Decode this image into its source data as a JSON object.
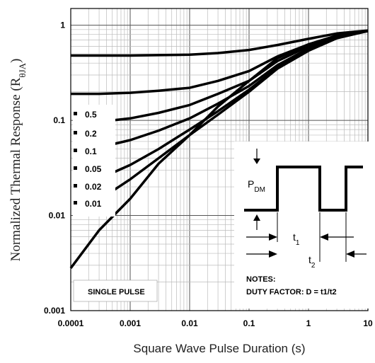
{
  "chart_data": {
    "type": "line",
    "title": "",
    "xlabel": "Square Wave Pulse Duration (s)",
    "ylabel": "Normalized Thermal Response (R",
    "ylabel_sub": "θJA",
    "ylabel_close": ")",
    "x_scale": "log",
    "y_scale": "log",
    "xlim": [
      0.0001,
      10
    ],
    "ylim": [
      0.001,
      1.5
    ],
    "grid": true,
    "x_ticks": [
      {
        "value": 0.0001,
        "label": "0.0001"
      },
      {
        "value": 0.001,
        "label": "0.001"
      },
      {
        "value": 0.01,
        "label": "0.01"
      },
      {
        "value": 0.1,
        "label": "0.1"
      },
      {
        "value": 1,
        "label": "1"
      },
      {
        "value": 10,
        "label": "10"
      }
    ],
    "y_ticks": [
      {
        "value": 0.001,
        "label": "0.001"
      },
      {
        "value": 0.01,
        "label": "0.01"
      },
      {
        "value": 0.1,
        "label": "0.1"
      },
      {
        "value": 1,
        "label": "1"
      }
    ],
    "x": [
      0.0001,
      0.0003,
      0.001,
      0.003,
      0.01,
      0.03,
      0.1,
      0.3,
      1,
      3,
      10
    ],
    "series": [
      {
        "name": "0.5",
        "values": [
          0.48,
          0.48,
          0.48,
          0.485,
          0.49,
          0.51,
          0.55,
          0.62,
          0.72,
          0.82,
          0.88
        ]
      },
      {
        "name": "0.2",
        "values": [
          0.19,
          0.19,
          0.195,
          0.205,
          0.22,
          0.26,
          0.33,
          0.47,
          0.63,
          0.77,
          0.87
        ]
      },
      {
        "name": "0.1",
        "values": null
      },
      {
        "name": "0.05",
        "values": null
      },
      {
        "name": "0.02",
        "values": null
      },
      {
        "name": "0.01",
        "values": null
      },
      {
        "name": "SINGLE PULSE",
        "values": [
          0.0028,
          0.007,
          0.015,
          0.035,
          0.07,
          0.14,
          0.26,
          0.45,
          0.63,
          0.78,
          0.87
        ]
      }
    ],
    "short_series": [
      {
        "name": "0.1",
        "x": [
          0.0005,
          0.001,
          0.003,
          0.01,
          0.03,
          0.1,
          0.3,
          1,
          3,
          10
        ],
        "values": [
          0.1,
          0.105,
          0.12,
          0.145,
          0.19,
          0.26,
          0.42,
          0.6,
          0.76,
          0.87
        ]
      },
      {
        "name": "0.05",
        "x": [
          0.0005,
          0.001,
          0.003,
          0.01,
          0.03,
          0.1,
          0.3,
          1,
          3,
          10
        ],
        "values": [
          0.056,
          0.062,
          0.078,
          0.105,
          0.15,
          0.23,
          0.38,
          0.57,
          0.75,
          0.87
        ]
      },
      {
        "name": "0.02",
        "x": [
          0.0005,
          0.001,
          0.003,
          0.01,
          0.03,
          0.1,
          0.3,
          1,
          3,
          10
        ],
        "values": [
          0.028,
          0.034,
          0.05,
          0.08,
          0.125,
          0.21,
          0.36,
          0.55,
          0.74,
          0.87
        ]
      },
      {
        "name": "0.01",
        "x": [
          0.0005,
          0.001,
          0.003,
          0.01,
          0.03,
          0.1,
          0.3,
          1,
          3,
          10
        ],
        "values": [
          0.018,
          0.024,
          0.04,
          0.07,
          0.115,
          0.2,
          0.35,
          0.54,
          0.73,
          0.87
        ]
      }
    ],
    "duty_labels": [
      "0.5",
      "0.2",
      "0.1",
      "0.05",
      "0.02",
      "0.01"
    ],
    "single_pulse_label": "SINGLE PULSE",
    "inset": {
      "pdm_label": "P",
      "pdm_sub": "DM",
      "t1_label": "t",
      "t1_sub": "1",
      "t2_label": "t",
      "t2_sub": "2",
      "notes_title": "NOTES:",
      "notes_text": "DUTY FACTOR: D = t1/t2"
    }
  }
}
